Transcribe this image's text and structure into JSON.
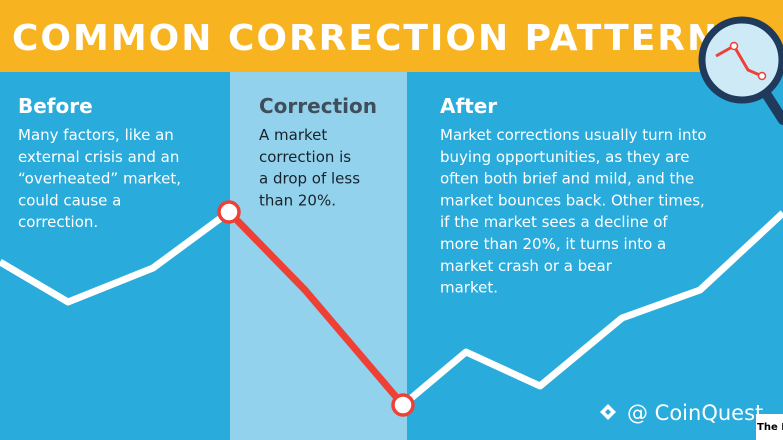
{
  "header": {
    "title": "COMMON CORRECTION PATTERN"
  },
  "panels": [
    {
      "title": "Before",
      "lines": [
        "Many factors, like an",
        "external crisis and an",
        "“overheated” market,",
        "could cause a",
        "correction."
      ]
    },
    {
      "title": "Correction",
      "lines": [
        "A market",
        "correction is",
        "a drop of less",
        "than 20%."
      ]
    },
    {
      "title": "After",
      "lines": [
        "Market corrections usually turn into",
        "buying opportunities, as they are",
        "often both brief and mild, and the",
        "market bounces back. Other times,",
        "if the market sees a decline of",
        "more than 20%, it turns into a",
        "market crash or a bear",
        "market."
      ]
    }
  ],
  "watermark": "@ CoinQuest",
  "footer_fragment": "The I"
}
